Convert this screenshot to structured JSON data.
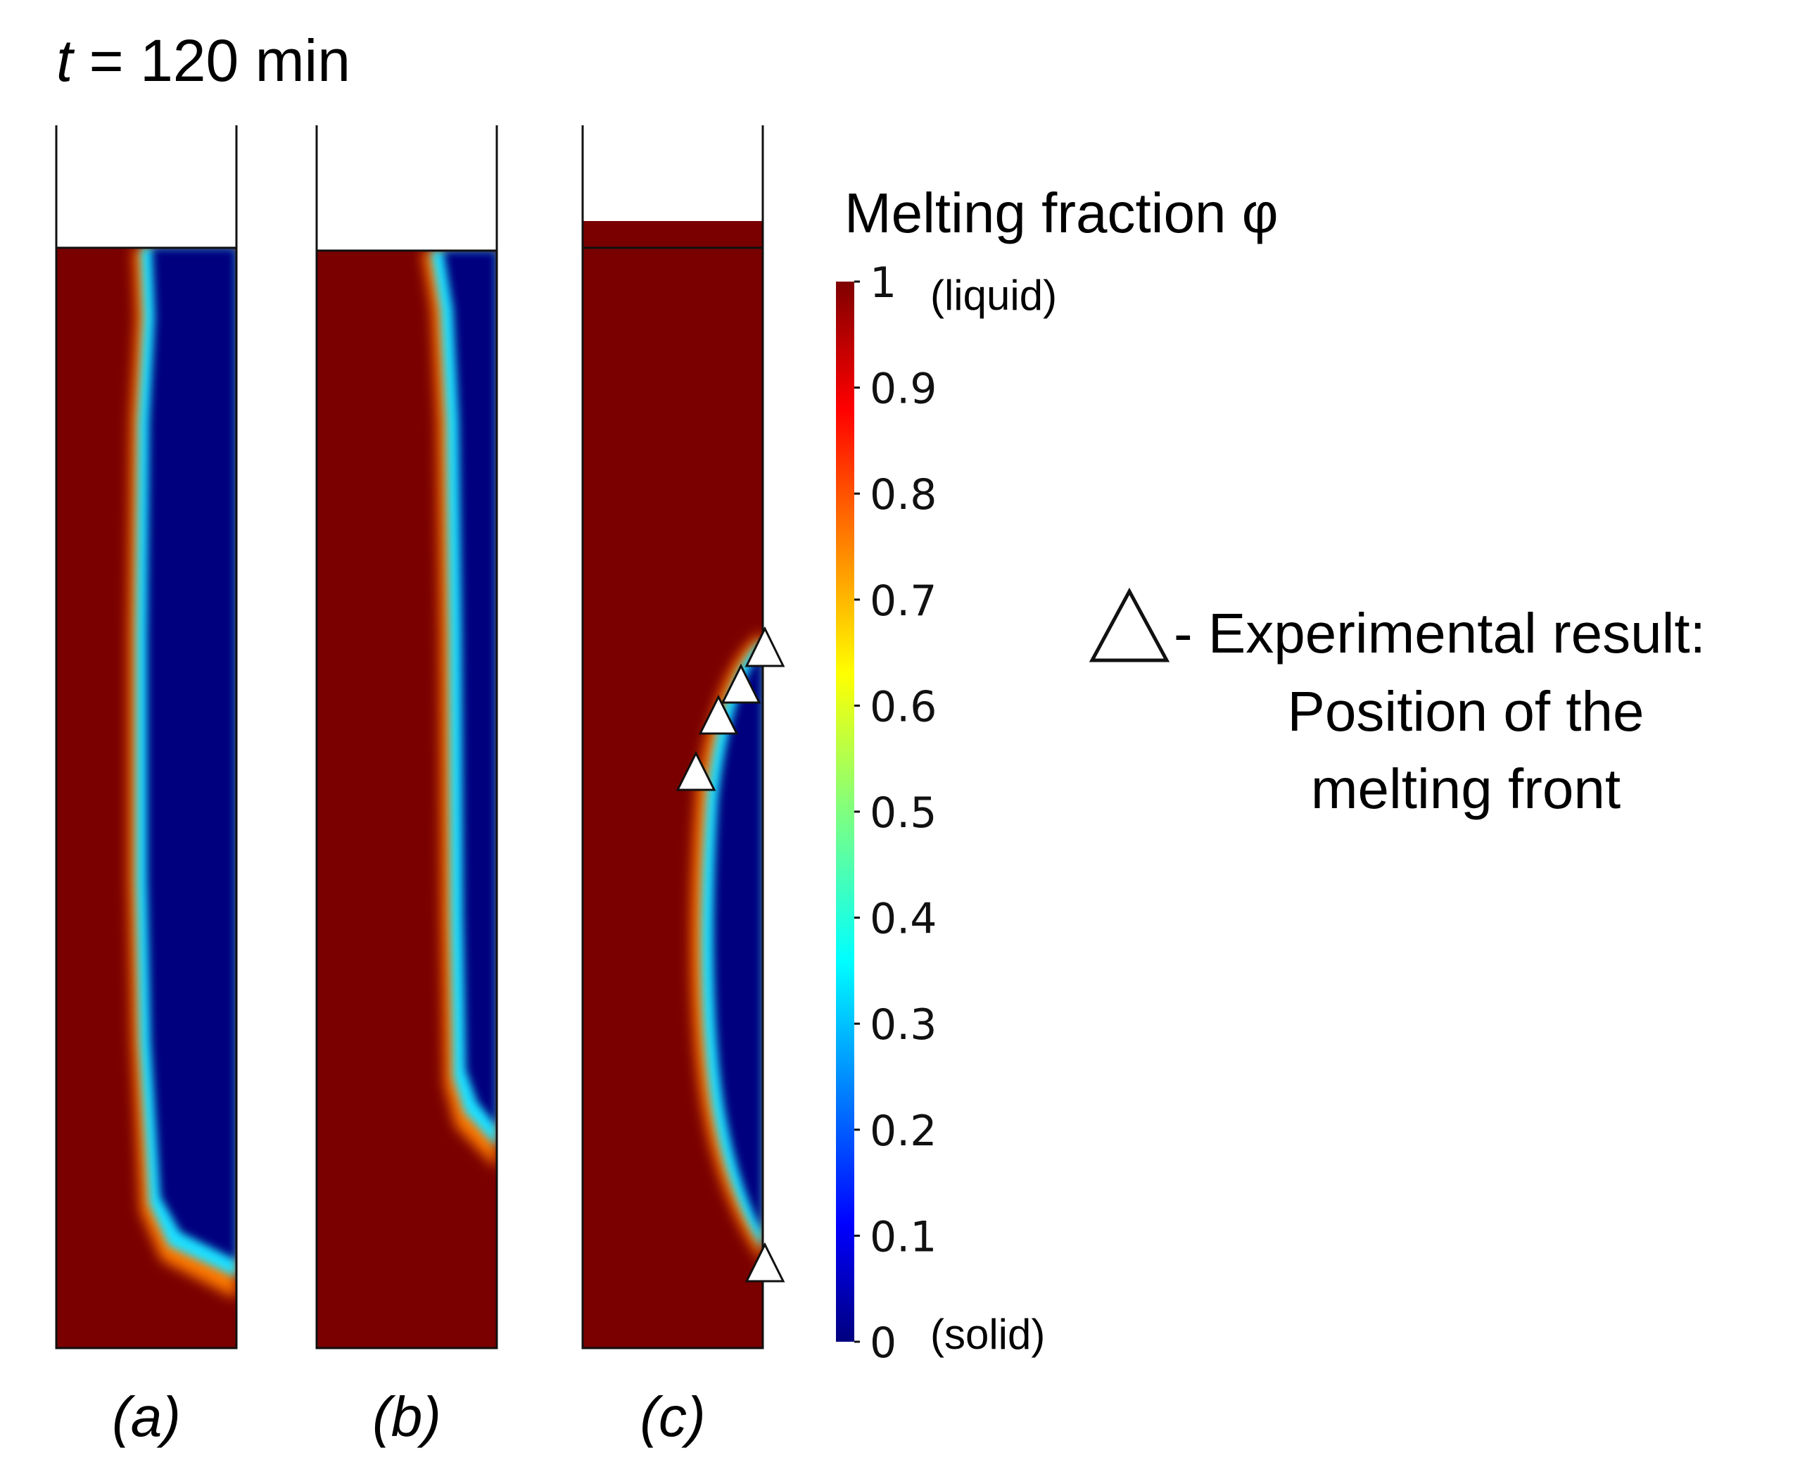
{
  "time_label": {
    "symbol": "t",
    "rest": " = 120 min"
  },
  "panels": [
    {
      "id": "a",
      "label": "(a)"
    },
    {
      "id": "b",
      "label": "(b)"
    },
    {
      "id": "c",
      "label": "(c)"
    }
  ],
  "colorbar": {
    "title": "Melting fraction φ",
    "colormap": "jet",
    "ticks": [
      "0",
      "0.1",
      "0.2",
      "0.3",
      "0.4",
      "0.5",
      "0.6",
      "0.7",
      "0.8",
      "0.9",
      "1"
    ],
    "top_label": "(liquid)",
    "bottom_label": "(solid)"
  },
  "legend": {
    "line1": "- Experimental result:",
    "line2": "Position of the",
    "line3": "melting front"
  },
  "colors": {
    "liquid": "#7a0000",
    "solid": "#00007f",
    "frame": "#111111",
    "marker_fill": "#ffffff"
  }
}
